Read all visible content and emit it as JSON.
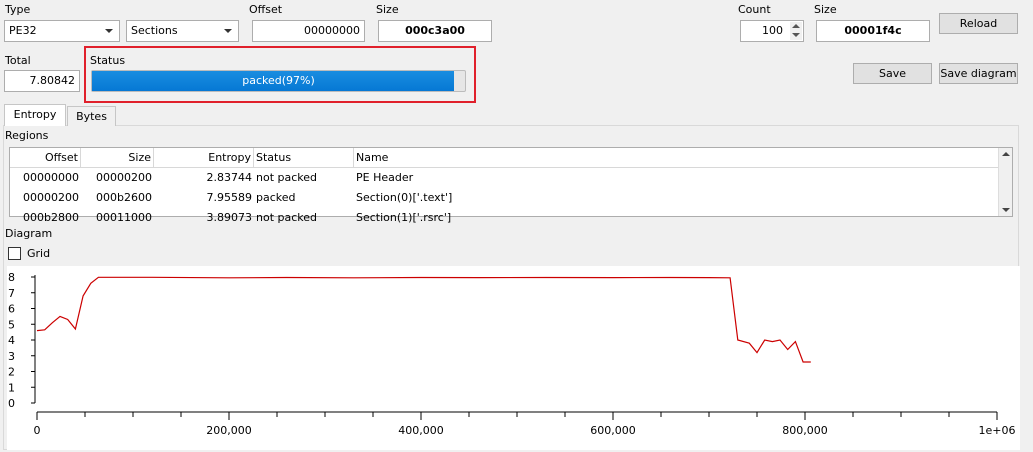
{
  "top": {
    "type_label": "Type",
    "type_value": "PE32",
    "mode_value": "Sections",
    "offset_label": "Offset",
    "offset_value": "00000000",
    "size_label": "Size",
    "size_value": "000c3a00",
    "count_label": "Count",
    "count_value": "100",
    "size2_label": "Size",
    "size2_value": "00001f4c",
    "reload_label": "Reload",
    "total_label": "Total",
    "total_value": "7.80842",
    "status_label": "Status",
    "status_text": "packed(97%)",
    "status_percent": 97,
    "save_label": "Save",
    "save_diagram_label": "Save diagram"
  },
  "tabs": [
    {
      "label": "Entropy",
      "active": true
    },
    {
      "label": "Bytes",
      "active": false
    }
  ],
  "regions": {
    "title": "Regions",
    "columns": [
      "Offset",
      "Size",
      "Entropy",
      "Status",
      "Name"
    ],
    "rows": [
      {
        "offset": "00000000",
        "size": "00000200",
        "entropy": "2.83744",
        "status": "not packed",
        "name": "PE Header"
      },
      {
        "offset": "00000200",
        "size": "000b2600",
        "entropy": "7.95589",
        "status": "packed",
        "name": "Section(0)['.text']"
      },
      {
        "offset": "000b2800",
        "size": "00011000",
        "entropy": "3.89073",
        "status": "not packed",
        "name": "Section(1)['.rsrc']"
      }
    ]
  },
  "diagram": {
    "title": "Diagram",
    "grid_label": "Grid",
    "grid_checked": false
  },
  "colors": {
    "accent": "#0678d4",
    "line": "#cc0000",
    "highlight": "#e0202b"
  },
  "chart_data": {
    "type": "line",
    "xlim": [
      0,
      1000000
    ],
    "ylim": [
      0,
      8
    ],
    "xticks": [
      "0",
      "200,000",
      "400,000",
      "600,000",
      "800,000",
      "1e+06"
    ],
    "yticks": [
      "0",
      "1",
      "2",
      "3",
      "4",
      "5",
      "6",
      "7",
      "8"
    ],
    "grid": false,
    "series": [
      {
        "x": [
          0,
          8000,
          16000,
          24000,
          32000,
          40000,
          48000,
          56000,
          64000,
          120000,
          200000,
          260000,
          330000,
          400000,
          460000,
          530000,
          600000,
          660000,
          700000,
          722000,
          730000,
          742000,
          750000,
          758000,
          766000,
          774000,
          782000,
          790000,
          798000,
          806000
        ],
        "y": [
          4.6,
          4.65,
          5.1,
          5.5,
          5.3,
          4.7,
          6.8,
          7.6,
          7.98,
          7.98,
          7.95,
          7.97,
          7.95,
          7.97,
          7.96,
          7.97,
          7.96,
          7.97,
          7.96,
          7.95,
          4.0,
          3.8,
          3.2,
          4.0,
          3.9,
          4.0,
          3.4,
          3.9,
          2.6,
          2.6
        ]
      }
    ]
  }
}
